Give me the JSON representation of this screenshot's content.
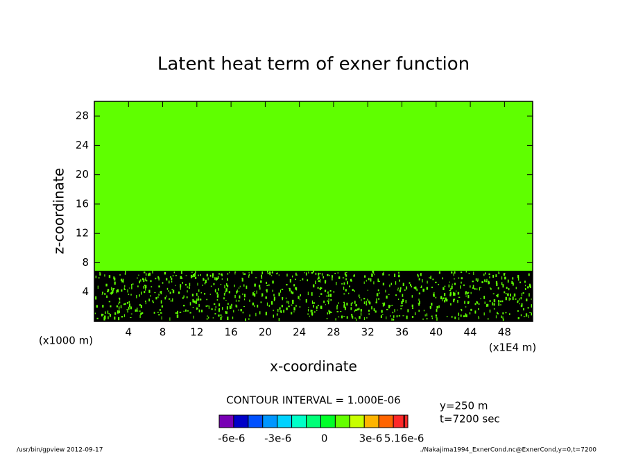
{
  "chart_data": {
    "type": "contour",
    "title": "Latent heat term of exner function",
    "x_label": "x-coordinate",
    "y_label": "z-coordinate",
    "x_unit_left": "(x1000 m)",
    "x_unit_right": "(x1E4 m)",
    "xlim": [
      0,
      51.3
    ],
    "xticks": [
      4,
      8,
      12,
      16,
      20,
      24,
      28,
      32,
      36,
      40,
      44,
      48
    ],
    "ylim": [
      0,
      30
    ],
    "yticks": [
      4,
      8,
      12,
      16,
      20,
      24,
      28
    ],
    "contour_interval": "CONTOUR INTERVAL = 1.000E-06",
    "info": [
      "y=250 m",
      "t=7200 sec"
    ],
    "colorbar": {
      "colors": [
        "#7800b4",
        "#0000c8",
        "#0050ff",
        "#0096ff",
        "#00d2ff",
        "#00ffc8",
        "#00ff78",
        "#00ff28",
        "#64ff00",
        "#c8ff00",
        "#ffb400",
        "#ff6400",
        "#ff2828"
      ],
      "clim": [
        -6.8e-06,
        5.4e-06
      ],
      "ticks": [
        {
          "value": -6e-06,
          "label": "-6e-6"
        },
        {
          "value": -3e-06,
          "label": "-3e-6"
        },
        0,
        {
          "value": 3e-06,
          "label": "3e-6"
        },
        {
          "value": 5.16e-06,
          "label": "5.16e-6"
        }
      ]
    },
    "footer_left": "/usr/bin/gpview  2012-09-17",
    "footer_right": "./Nakajima1994_ExnerCond.nc@ExnerCond,y=0,t=7200"
  }
}
